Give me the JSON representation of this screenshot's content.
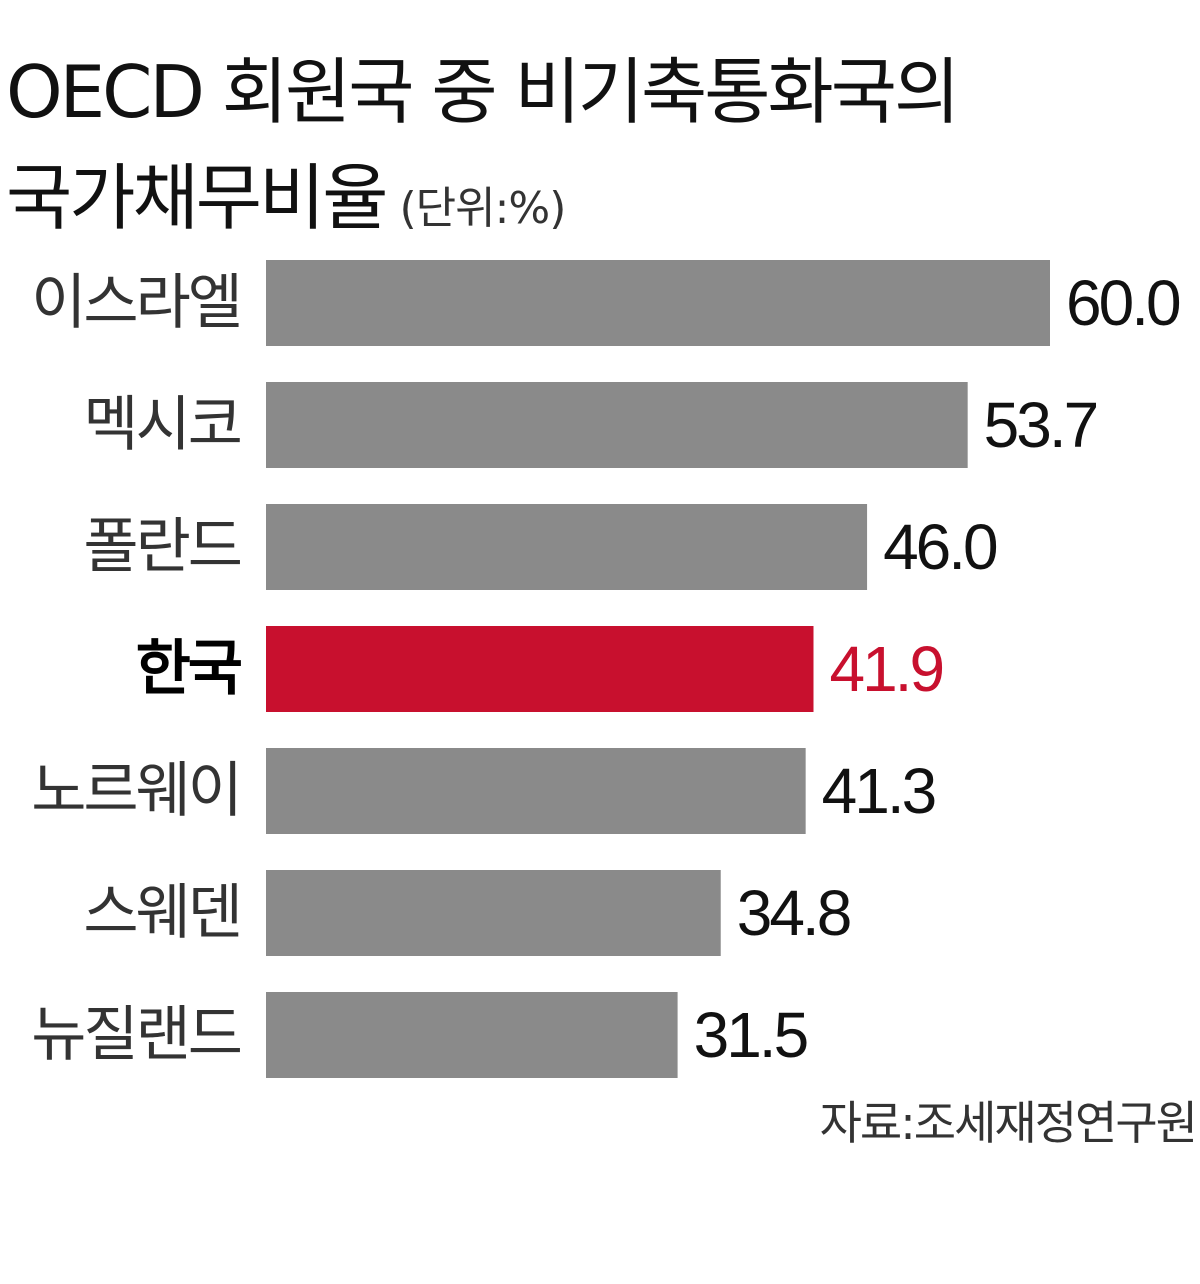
{
  "chart_data": {
    "type": "bar",
    "orientation": "horizontal",
    "title": "OECD 회원국 중 비기축통화국의 국가채무비율",
    "title_lines": [
      "OECD 회원국 중 비기축통화국의",
      "국가채무비율"
    ],
    "unit": "(단위:%)",
    "categories": [
      "이스라엘",
      "멕시코",
      "폴란드",
      "한국",
      "노르웨이",
      "스웨덴",
      "뉴질랜드"
    ],
    "values": [
      60.0,
      53.7,
      46.0,
      41.9,
      41.3,
      34.8,
      31.5
    ],
    "value_labels": [
      "60.0",
      "53.7",
      "46.0",
      "41.9",
      "41.3",
      "34.8",
      "31.5"
    ],
    "highlight": "한국",
    "xlim": [
      0,
      60
    ],
    "grid": false,
    "source": "자료:조세재정연구원"
  },
  "colors": {
    "bar": "#8a8a8a",
    "highlight_bar": "#c8102e",
    "highlight_text": "#c8102e",
    "text": "#111111"
  }
}
